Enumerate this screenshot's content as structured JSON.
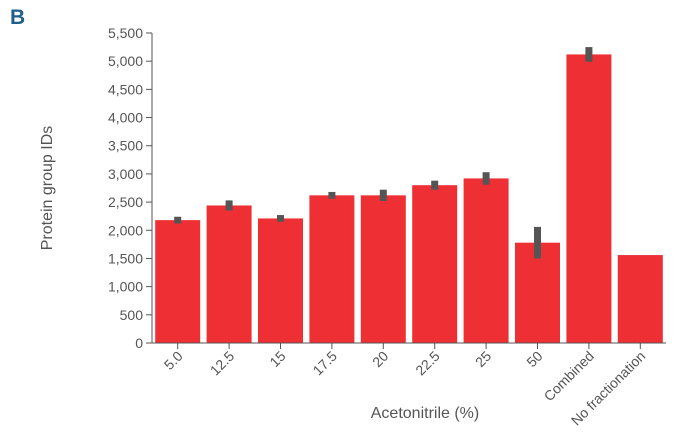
{
  "panel_label": "B",
  "colors": {
    "bar": "#ee3035",
    "error_bar": "#555555",
    "axis": "#555555"
  },
  "chart_data": {
    "type": "bar",
    "title": "",
    "xlabel": "Acetonitrile (%)",
    "ylabel": "Protein group IDs",
    "ylim": [
      0,
      5500
    ],
    "yticks": [
      0,
      500,
      1000,
      1500,
      2000,
      2500,
      3000,
      3500,
      4000,
      4500,
      5000,
      5500
    ],
    "ytick_labels": [
      "0",
      "500",
      "1,000",
      "1,500",
      "2,000",
      "2,500",
      "3,000",
      "3,500",
      "4,000",
      "4,500",
      "5,000",
      "5,500"
    ],
    "categories": [
      "5.0",
      "12.5",
      "15",
      "17.5",
      "20",
      "22.5",
      "25",
      "50",
      "Combined",
      "No fractionation"
    ],
    "values": [
      2180,
      2440,
      2210,
      2620,
      2620,
      2800,
      2920,
      1780,
      5120,
      1560
    ],
    "error": [
      60,
      90,
      60,
      60,
      100,
      80,
      110,
      280,
      130,
      0
    ],
    "grid": false,
    "legend": "none"
  }
}
